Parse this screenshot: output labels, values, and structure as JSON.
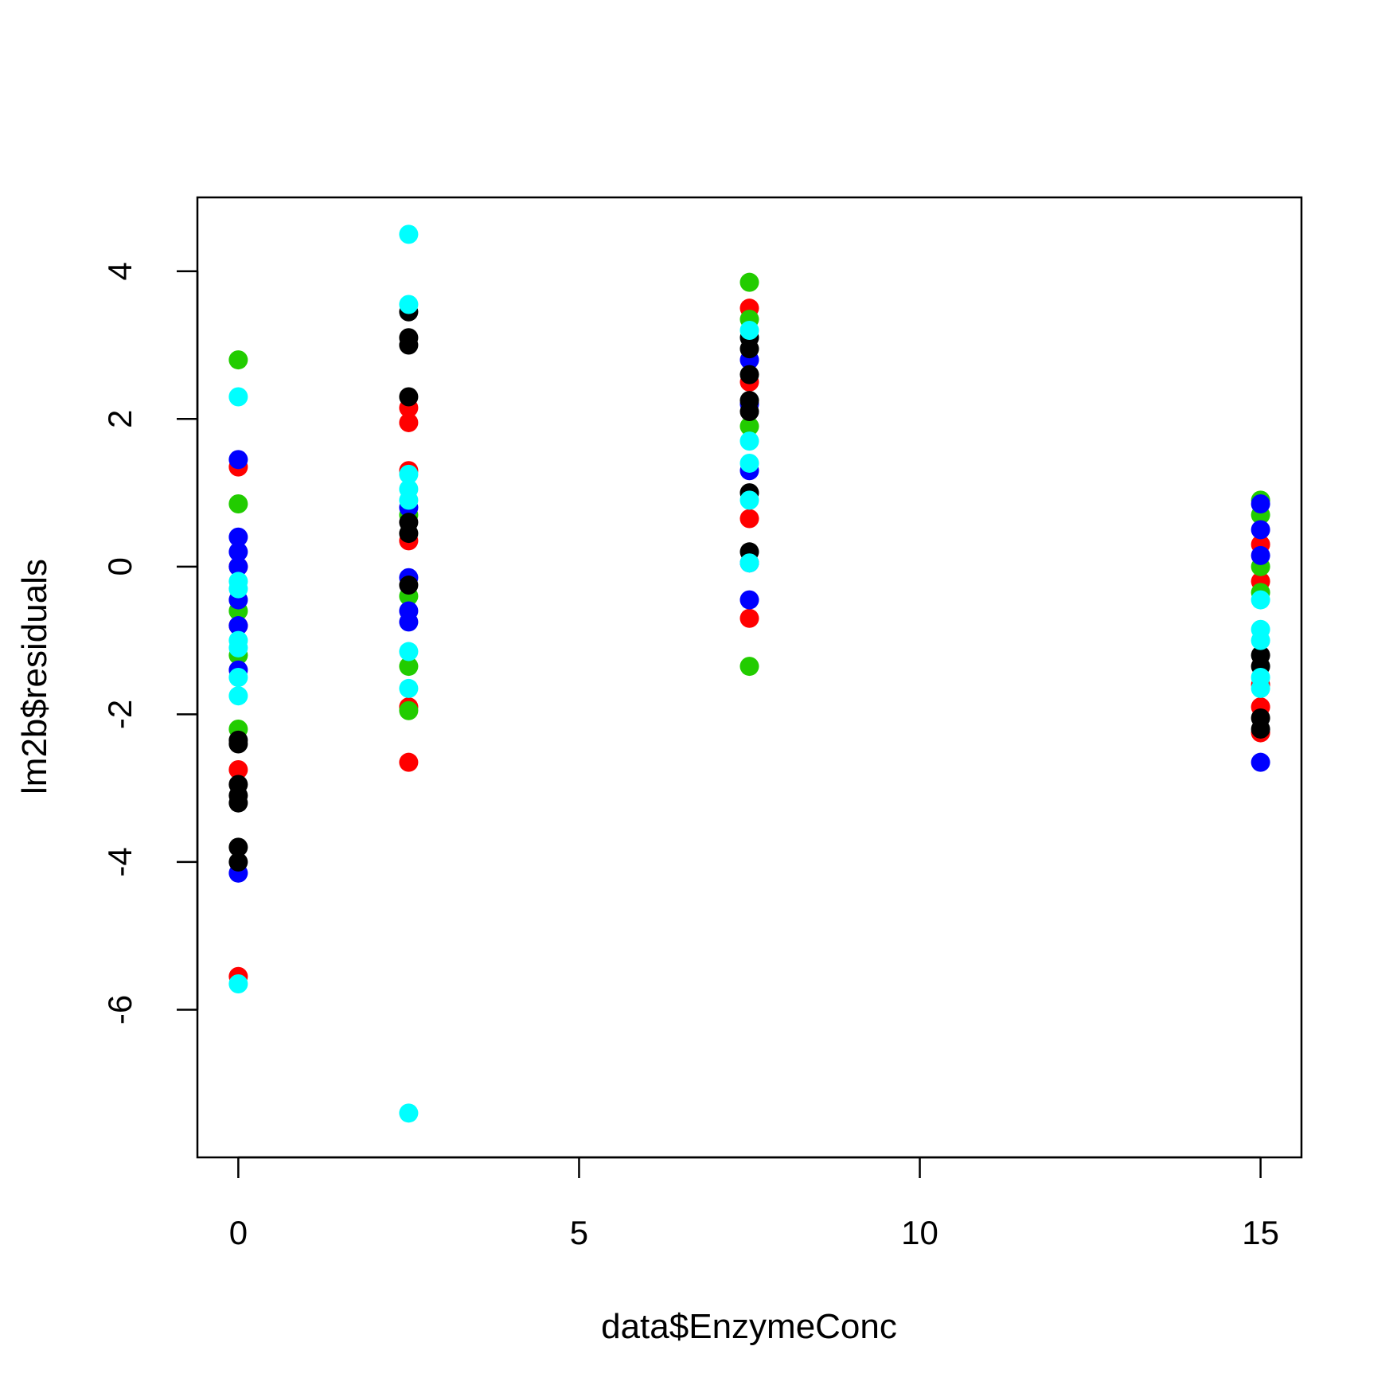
{
  "chart_data": {
    "type": "scatter",
    "title": "",
    "xlabel": "data$EnzymeConc",
    "ylabel": "lm2b$residuals",
    "xlim": [
      -0.6,
      15.6
    ],
    "ylim": [
      -8.0,
      5.0
    ],
    "x_ticks": [
      0,
      5,
      10,
      15
    ],
    "x_tick_labels": [
      "0",
      "5",
      "10",
      "15"
    ],
    "y_ticks": [
      -6,
      -4,
      -2,
      0,
      2,
      4
    ],
    "y_tick_labels": [
      "-6",
      "-4",
      "-2",
      "0",
      "2",
      "4"
    ],
    "grid": false,
    "legend": "none",
    "series": [
      {
        "color": "#ff0000",
        "points": [
          [
            0,
            1.35
          ],
          [
            0,
            0.0
          ],
          [
            0,
            -0.8
          ],
          [
            0,
            -2.75
          ],
          [
            0,
            -5.55
          ],
          [
            2.5,
            2.15
          ],
          [
            2.5,
            1.95
          ],
          [
            2.5,
            1.3
          ],
          [
            2.5,
            0.35
          ],
          [
            2.5,
            -1.9
          ],
          [
            2.5,
            -2.65
          ],
          [
            7.5,
            3.5
          ],
          [
            7.5,
            2.5
          ],
          [
            7.5,
            0.65
          ],
          [
            7.5,
            -0.7
          ],
          [
            15,
            0.3
          ],
          [
            15,
            -0.2
          ],
          [
            15,
            -1.6
          ],
          [
            15,
            -1.9
          ],
          [
            15,
            -2.25
          ]
        ]
      },
      {
        "color": "#22cc00",
        "points": [
          [
            0,
            2.8
          ],
          [
            0,
            0.85
          ],
          [
            0,
            -0.6
          ],
          [
            0,
            -1.2
          ],
          [
            0,
            -2.2
          ],
          [
            2.5,
            0.7
          ],
          [
            2.5,
            -0.4
          ],
          [
            2.5,
            -1.35
          ],
          [
            2.5,
            -1.95
          ],
          [
            7.5,
            3.85
          ],
          [
            7.5,
            3.35
          ],
          [
            7.5,
            1.9
          ],
          [
            7.5,
            -1.35
          ],
          [
            15,
            0.9
          ],
          [
            15,
            0.7
          ],
          [
            15,
            0.0
          ],
          [
            15,
            -0.35
          ]
        ]
      },
      {
        "color": "#0000ff",
        "points": [
          [
            0,
            1.45
          ],
          [
            0,
            0.4
          ],
          [
            0,
            0.2
          ],
          [
            0,
            0.0
          ],
          [
            0,
            -0.45
          ],
          [
            0,
            -0.8
          ],
          [
            0,
            -1.4
          ],
          [
            0,
            -4.15
          ],
          [
            2.5,
            0.8
          ],
          [
            2.5,
            -0.15
          ],
          [
            2.5,
            -0.6
          ],
          [
            2.5,
            -0.75
          ],
          [
            7.5,
            2.8
          ],
          [
            7.5,
            2.2
          ],
          [
            7.5,
            1.3
          ],
          [
            7.5,
            0.05
          ],
          [
            7.5,
            -0.45
          ],
          [
            15,
            0.85
          ],
          [
            15,
            0.5
          ],
          [
            15,
            0.15
          ],
          [
            15,
            -2.65
          ]
        ]
      },
      {
        "color": "#000000",
        "points": [
          [
            0,
            -2.35
          ],
          [
            0,
            -2.4
          ],
          [
            0,
            -2.95
          ],
          [
            0,
            -3.1
          ],
          [
            0,
            -3.2
          ],
          [
            0,
            -3.8
          ],
          [
            0,
            -4.0
          ],
          [
            2.5,
            3.45
          ],
          [
            2.5,
            3.1
          ],
          [
            2.5,
            3.0
          ],
          [
            2.5,
            2.3
          ],
          [
            2.5,
            0.6
          ],
          [
            2.5,
            0.45
          ],
          [
            2.5,
            -0.25
          ],
          [
            7.5,
            3.1
          ],
          [
            7.5,
            2.95
          ],
          [
            7.5,
            2.6
          ],
          [
            7.5,
            2.25
          ],
          [
            7.5,
            2.1
          ],
          [
            7.5,
            1.0
          ],
          [
            7.5,
            0.2
          ],
          [
            15,
            -1.2
          ],
          [
            15,
            -1.35
          ],
          [
            15,
            -2.05
          ],
          [
            15,
            -2.2
          ]
        ]
      },
      {
        "color": "#00ffff",
        "points": [
          [
            0,
            2.3
          ],
          [
            0,
            -0.2
          ],
          [
            0,
            -0.3
          ],
          [
            0,
            -1.0
          ],
          [
            0,
            -1.1
          ],
          [
            0,
            -1.5
          ],
          [
            0,
            -1.75
          ],
          [
            0,
            -5.65
          ],
          [
            2.5,
            4.5
          ],
          [
            2.5,
            3.55
          ],
          [
            2.5,
            1.25
          ],
          [
            2.5,
            1.05
          ],
          [
            2.5,
            0.9
          ],
          [
            2.5,
            -1.15
          ],
          [
            2.5,
            -1.65
          ],
          [
            2.5,
            -7.4
          ],
          [
            7.5,
            3.2
          ],
          [
            7.5,
            1.7
          ],
          [
            7.5,
            1.4
          ],
          [
            7.5,
            0.9
          ],
          [
            7.5,
            0.05
          ],
          [
            15,
            -0.45
          ],
          [
            15,
            -0.85
          ],
          [
            15,
            -1.0
          ],
          [
            15,
            -1.5
          ],
          [
            15,
            -1.65
          ]
        ]
      }
    ]
  }
}
